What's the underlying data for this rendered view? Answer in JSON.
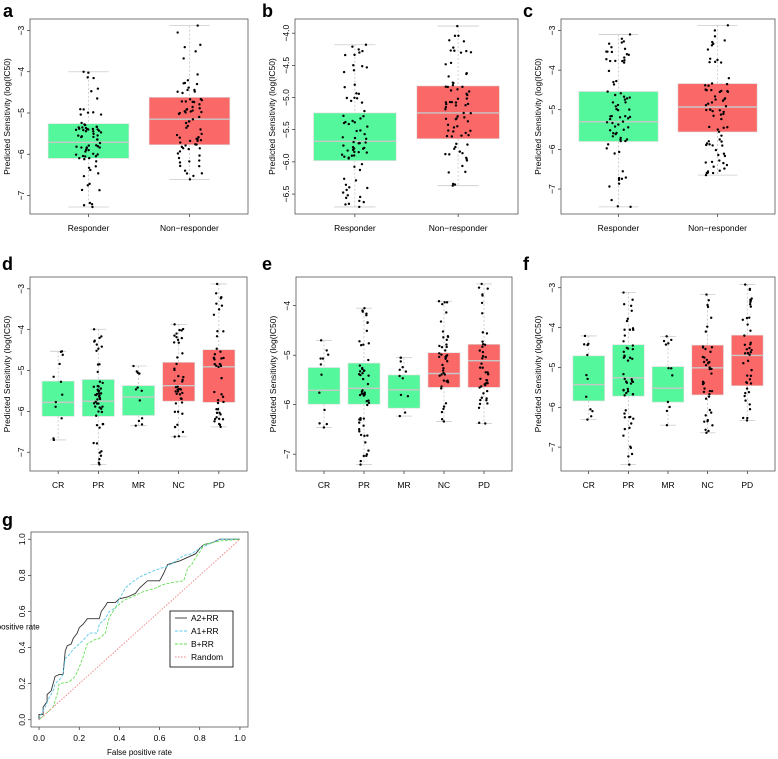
{
  "chart_data": [
    {
      "panel": "a",
      "type": "box",
      "ylabel": "Predicted Sensitivity (log(IC50)",
      "ylim": [
        -7.45,
        -2.72
      ],
      "yticks": [
        -3,
        -4,
        -5,
        -6,
        -7
      ],
      "categories": [
        "Responder",
        "Non−responder"
      ],
      "boxes": [
        {
          "lo": -7.28,
          "q1": -6.1,
          "median": -5.71,
          "q3": -5.26,
          "hi": -4.0,
          "color": "#55F79C"
        },
        {
          "lo": -6.61,
          "q1": -5.77,
          "median": -5.15,
          "q3": -4.62,
          "hi": -2.88,
          "color": "#FA6868"
        }
      ]
    },
    {
      "panel": "b",
      "type": "box",
      "ylabel": "Predicted Sensitivity (log(IC50)",
      "ylim": [
        -6.81,
        -3.78
      ],
      "yticks": [
        "-4.0",
        "-4.5",
        "-5.0",
        "-5.5",
        "-6.0",
        "-6.5"
      ],
      "categories": [
        "Responder",
        "Non−responder"
      ],
      "boxes": [
        {
          "lo": -6.7,
          "q1": -5.98,
          "median": -5.68,
          "q3": -5.24,
          "hi": -4.18,
          "color": "#55F79C"
        },
        {
          "lo": -6.37,
          "q1": -5.64,
          "median": -5.24,
          "q3": -4.82,
          "hi": -3.89,
          "color": "#FA6868"
        }
      ]
    },
    {
      "panel": "c",
      "type": "box",
      "ylabel": "Predicted Sensitivity (log(IC50)",
      "ylim": [
        -7.63,
        -2.71
      ],
      "yticks": [
        -3,
        -4,
        -5,
        -6,
        -7
      ],
      "categories": [
        "Responder",
        "Non−responder"
      ],
      "boxes": [
        {
          "lo": -7.45,
          "q1": -5.8,
          "median": -5.3,
          "q3": -4.54,
          "hi": -3.1,
          "color": "#55F79C"
        },
        {
          "lo": -6.65,
          "q1": -5.56,
          "median": -4.93,
          "q3": -4.34,
          "hi": -2.87,
          "color": "#FA6868"
        }
      ]
    },
    {
      "panel": "d",
      "type": "box",
      "ylabel": "Predicted Sensitivity (log(IC50)",
      "ylim": [
        -7.46,
        -2.71
      ],
      "yticks": [
        -3,
        -4,
        -5,
        -6,
        -7
      ],
      "categories": [
        "CR",
        "PR",
        "MR",
        "NC",
        "PD"
      ],
      "boxes": [
        {
          "lo": -6.7,
          "q1": -6.12,
          "median": -5.78,
          "q3": -5.26,
          "hi": -4.53,
          "color": "#55F79C"
        },
        {
          "lo": -7.3,
          "q1": -6.12,
          "median": -5.75,
          "q3": -5.22,
          "hi": -3.99,
          "color": "#55F79C"
        },
        {
          "lo": -6.35,
          "q1": -6.1,
          "median": -5.65,
          "q3": -5.37,
          "hi": -4.89,
          "color": "#55F79C"
        },
        {
          "lo": -6.62,
          "q1": -5.75,
          "median": -5.37,
          "q3": -4.8,
          "hi": -3.87,
          "color": "#FA6868"
        },
        {
          "lo": -6.38,
          "q1": -5.78,
          "median": -4.91,
          "q3": -4.49,
          "hi": -2.88,
          "color": "#FA6868"
        }
      ]
    },
    {
      "panel": "e",
      "type": "box",
      "ylabel": "Predicted Sensitivity (log(IC50)",
      "ylim": [
        -7.34,
        -3.42
      ],
      "yticks": [
        -4,
        -5,
        -6,
        -7
      ],
      "categories": [
        "CR",
        "PR",
        "MR",
        "NC",
        "PD"
      ],
      "boxes": [
        {
          "lo": -6.46,
          "q1": -5.99,
          "median": -5.71,
          "q3": -5.25,
          "hi": -4.7,
          "color": "#55F79C"
        },
        {
          "lo": -7.21,
          "q1": -5.99,
          "median": -5.67,
          "q3": -5.16,
          "hi": -4.05,
          "color": "#55F79C"
        },
        {
          "lo": -6.23,
          "q1": -6.07,
          "median": -5.7,
          "q3": -5.4,
          "hi": -5.05,
          "color": "#55F79C"
        },
        {
          "lo": -6.34,
          "q1": -5.65,
          "median": -5.37,
          "q3": -4.95,
          "hi": -3.91,
          "color": "#FA6868"
        },
        {
          "lo": -6.38,
          "q1": -5.65,
          "median": -5.11,
          "q3": -4.78,
          "hi": -3.56,
          "color": "#FA6868"
        }
      ]
    },
    {
      "panel": "f",
      "type": "box",
      "ylabel": "Predicted Sensitivity (log(IC50)",
      "ylim": [
        -7.6,
        -2.73
      ],
      "yticks": [
        -3,
        -4,
        -5,
        -6,
        -7
      ],
      "categories": [
        "CR",
        "PR",
        "MR",
        "NC",
        "PD"
      ],
      "boxes": [
        {
          "lo": -6.31,
          "q1": -5.84,
          "median": -5.43,
          "q3": -4.71,
          "hi": -4.21,
          "color": "#55F79C"
        },
        {
          "lo": -7.44,
          "q1": -5.72,
          "median": -5.26,
          "q3": -4.43,
          "hi": -3.12,
          "color": "#55F79C"
        },
        {
          "lo": -6.45,
          "q1": -5.87,
          "median": -5.52,
          "q3": -4.98,
          "hi": -4.22,
          "color": "#55F79C"
        },
        {
          "lo": -6.64,
          "q1": -5.69,
          "median": -5.01,
          "q3": -4.44,
          "hi": -3.17,
          "color": "#FA6868"
        },
        {
          "lo": -6.33,
          "q1": -5.46,
          "median": -4.7,
          "q3": -4.19,
          "hi": -2.92,
          "color": "#FA6868"
        }
      ]
    },
    {
      "panel": "g",
      "type": "line",
      "xlabel": "False positive rate",
      "ylabel": "True positive rate",
      "xlim": [
        -0.04,
        1.04
      ],
      "ylim": [
        -0.04,
        1.04
      ],
      "xticks": [
        "0.0",
        "0.2",
        "0.4",
        "0.6",
        "0.8",
        "1.0"
      ],
      "yticks": [
        "0.0",
        "0.2",
        "0.4",
        "0.6",
        "0.8",
        "1.0"
      ],
      "legend": {
        "position": "center-right"
      },
      "series": [
        {
          "name": "A2+RR",
          "color": "#333333",
          "dash": "",
          "points": [
            [
              0,
              0
            ],
            [
              0,
              0.03
            ],
            [
              0.02,
              0.03
            ],
            [
              0.02,
              0.07
            ],
            [
              0.04,
              0.1
            ],
            [
              0.04,
              0.14
            ],
            [
              0.06,
              0.16
            ],
            [
              0.07,
              0.2
            ],
            [
              0.08,
              0.24
            ],
            [
              0.1,
              0.25
            ],
            [
              0.12,
              0.25
            ],
            [
              0.13,
              0.38
            ],
            [
              0.14,
              0.41
            ],
            [
              0.16,
              0.42
            ],
            [
              0.17,
              0.45
            ],
            [
              0.19,
              0.48
            ],
            [
              0.2,
              0.51
            ],
            [
              0.22,
              0.53
            ],
            [
              0.24,
              0.56
            ],
            [
              0.3,
              0.56
            ],
            [
              0.31,
              0.6
            ],
            [
              0.33,
              0.63
            ],
            [
              0.34,
              0.65
            ],
            [
              0.38,
              0.65
            ],
            [
              0.4,
              0.67
            ],
            [
              0.44,
              0.68
            ],
            [
              0.48,
              0.7
            ],
            [
              0.5,
              0.73
            ],
            [
              0.52,
              0.75
            ],
            [
              0.54,
              0.77
            ],
            [
              0.6,
              0.77
            ],
            [
              0.62,
              0.81
            ],
            [
              0.64,
              0.86
            ],
            [
              0.7,
              0.88
            ],
            [
              0.74,
              0.9
            ],
            [
              0.78,
              0.92
            ],
            [
              0.8,
              0.95
            ],
            [
              0.82,
              0.97
            ],
            [
              0.86,
              0.98
            ],
            [
              0.9,
              1
            ],
            [
              1,
              1
            ]
          ]
        },
        {
          "name": "A1+RR",
          "color": "#5CC8E8",
          "dash": "3,1.5",
          "points": [
            [
              0,
              0
            ],
            [
              0.01,
              0.03
            ],
            [
              0.03,
              0.07
            ],
            [
              0.05,
              0.12
            ],
            [
              0.07,
              0.16
            ],
            [
              0.08,
              0.2
            ],
            [
              0.1,
              0.22
            ],
            [
              0.12,
              0.25
            ],
            [
              0.13,
              0.34
            ],
            [
              0.15,
              0.36
            ],
            [
              0.17,
              0.39
            ],
            [
              0.2,
              0.42
            ],
            [
              0.22,
              0.44
            ],
            [
              0.25,
              0.48
            ],
            [
              0.29,
              0.48
            ],
            [
              0.3,
              0.53
            ],
            [
              0.33,
              0.56
            ],
            [
              0.35,
              0.6
            ],
            [
              0.38,
              0.62
            ],
            [
              0.4,
              0.67
            ],
            [
              0.43,
              0.73
            ],
            [
              0.46,
              0.76
            ],
            [
              0.5,
              0.79
            ],
            [
              0.54,
              0.81
            ],
            [
              0.58,
              0.83
            ],
            [
              0.64,
              0.85
            ],
            [
              0.68,
              0.88
            ],
            [
              0.72,
              0.91
            ],
            [
              0.76,
              0.92
            ],
            [
              0.8,
              0.95
            ],
            [
              0.84,
              0.97
            ],
            [
              0.88,
              0.99
            ],
            [
              0.9,
              1
            ],
            [
              1,
              1
            ]
          ]
        },
        {
          "name": "B+RR",
          "color": "#66DD55",
          "dash": "3,1.5",
          "points": [
            [
              0,
              0
            ],
            [
              0.03,
              0.03
            ],
            [
              0.05,
              0.05
            ],
            [
              0.07,
              0.07
            ],
            [
              0.09,
              0.14
            ],
            [
              0.1,
              0.2
            ],
            [
              0.15,
              0.21
            ],
            [
              0.18,
              0.24
            ],
            [
              0.2,
              0.29
            ],
            [
              0.22,
              0.35
            ],
            [
              0.24,
              0.42
            ],
            [
              0.27,
              0.44
            ],
            [
              0.3,
              0.45
            ],
            [
              0.33,
              0.48
            ],
            [
              0.35,
              0.57
            ],
            [
              0.38,
              0.62
            ],
            [
              0.42,
              0.66
            ],
            [
              0.46,
              0.68
            ],
            [
              0.52,
              0.71
            ],
            [
              0.58,
              0.73
            ],
            [
              0.62,
              0.75
            ],
            [
              0.66,
              0.76
            ],
            [
              0.72,
              0.77
            ],
            [
              0.74,
              0.84
            ],
            [
              0.76,
              0.86
            ],
            [
              0.78,
              0.9
            ],
            [
              0.8,
              0.93
            ],
            [
              0.82,
              0.97
            ],
            [
              0.86,
              0.98
            ],
            [
              0.9,
              0.99
            ],
            [
              1,
              1
            ]
          ]
        },
        {
          "name": "Random",
          "color": "#F08080",
          "dash": "1.5,1.5",
          "points": [
            [
              0,
              0
            ],
            [
              1,
              1
            ]
          ]
        }
      ]
    }
  ]
}
